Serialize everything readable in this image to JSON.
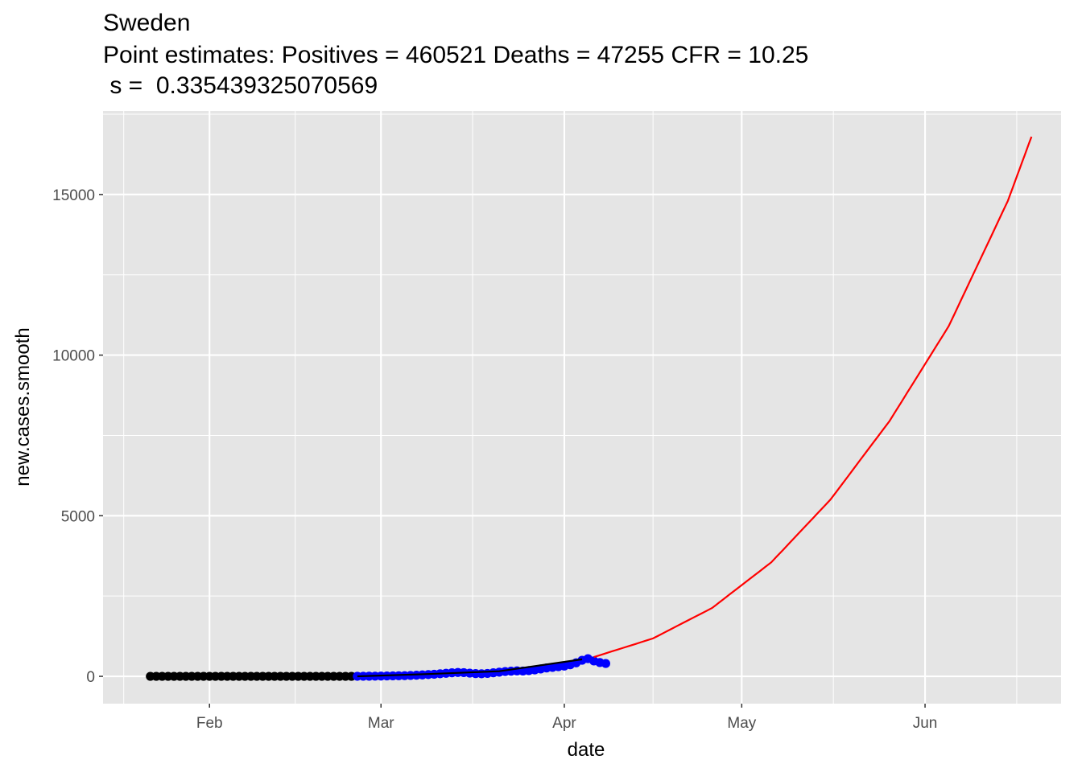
{
  "chart_data": {
    "type": "scatter",
    "title_lines": [
      "Sweden",
      "Point estimates: Positives = 460521 Deaths = 47255 CFR = 10.25",
      " s =  0.335439325070569"
    ],
    "xlabel": "date",
    "ylabel": "new.cases.smooth",
    "x_ticks": [
      {
        "label": "Feb",
        "date": "2020-02-01"
      },
      {
        "label": "Mar",
        "date": "2020-03-01"
      },
      {
        "label": "Apr",
        "date": "2020-04-01"
      },
      {
        "label": "May",
        "date": "2020-05-01"
      },
      {
        "label": "Jun",
        "date": "2020-06-01"
      }
    ],
    "y_ticks": [
      {
        "label": "0",
        "value": 0
      },
      {
        "label": "5000",
        "value": 5000
      },
      {
        "label": "10000",
        "value": 10000
      },
      {
        "label": "15000",
        "value": 15000
      }
    ],
    "xlim": [
      "2020-01-14",
      "2020-06-24"
    ],
    "ylim": [
      -850,
      17600
    ],
    "grid": true,
    "series": [
      {
        "style": "points",
        "color": "#000000",
        "start_date": "2020-01-22",
        "values": [
          0,
          0,
          0,
          0,
          0,
          0,
          0,
          0,
          0,
          0,
          0,
          0,
          0,
          0,
          0,
          0,
          0,
          0,
          0,
          0,
          0,
          0,
          0,
          0,
          0,
          0,
          0,
          0,
          0,
          0,
          0,
          0,
          0,
          0,
          0
        ]
      },
      {
        "style": "points",
        "color": "#0000ff",
        "start_date": "2020-02-26",
        "values": [
          2,
          3,
          4,
          6,
          8,
          12,
          15,
          18,
          22,
          28,
          35,
          45,
          55,
          65,
          80,
          95,
          110,
          120,
          115,
          100,
          85,
          80,
          90,
          110,
          130,
          150,
          160,
          170,
          165,
          180,
          200,
          230,
          260,
          280,
          300,
          320,
          360,
          420,
          500,
          550,
          480,
          430,
          400
        ]
      },
      {
        "style": "line",
        "color": "#000000",
        "x": [
          "2020-02-26",
          "2020-03-09",
          "2020-03-21",
          "2020-04-04"
        ],
        "values": [
          0,
          70,
          160,
          530
        ]
      },
      {
        "style": "line",
        "color": "#ff0000",
        "start_date": "2020-04-06",
        "x": [
          "2020-04-06",
          "2020-04-16",
          "2020-04-26",
          "2020-05-06",
          "2020-05-16",
          "2020-05-26",
          "2020-06-05",
          "2020-06-15",
          "2020-06-19"
        ],
        "values": [
          600,
          1180,
          2130,
          3550,
          5500,
          7950,
          10900,
          14800,
          16800
        ]
      }
    ]
  }
}
